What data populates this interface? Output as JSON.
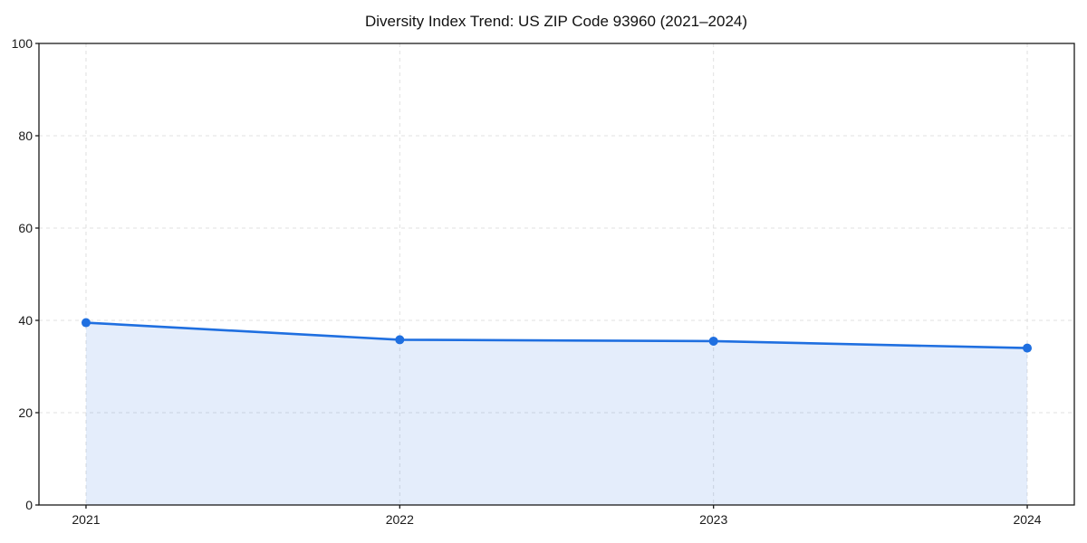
{
  "chart_data": {
    "type": "area",
    "title": "Diversity Index Trend: US ZIP Code 93960 (2021–2024)",
    "x": [
      2021,
      2022,
      2023,
      2024
    ],
    "categories": [
      "2021",
      "2022",
      "2023",
      "2024"
    ],
    "series": [
      {
        "name": "Diversity Index",
        "values": [
          39.5,
          35.8,
          35.5,
          34.0
        ]
      }
    ],
    "values": [
      39.5,
      35.8,
      35.5,
      34.0
    ],
    "xlabel": "",
    "ylabel": "",
    "ylim": [
      0,
      100
    ],
    "xlim_pad_years": 0.15,
    "yticks": [
      0,
      20,
      40,
      60,
      80,
      100
    ],
    "ytick_labels": [
      "0",
      "20",
      "40",
      "60",
      "80",
      "100"
    ],
    "xticks": [
      2021,
      2022,
      2023,
      2024
    ],
    "grid": true,
    "grid_style": "dashed",
    "legend": false,
    "marker": "circle",
    "colors": {
      "line": "#1f6fe0",
      "marker": "#1f6fe0",
      "fill": "rgba(31,111,224,0.12)",
      "grid": "#e0e0e0",
      "axis": "#1a1a1a",
      "tick_label": "#1a1a1a",
      "title": "#111111",
      "background": "#ffffff"
    }
  }
}
